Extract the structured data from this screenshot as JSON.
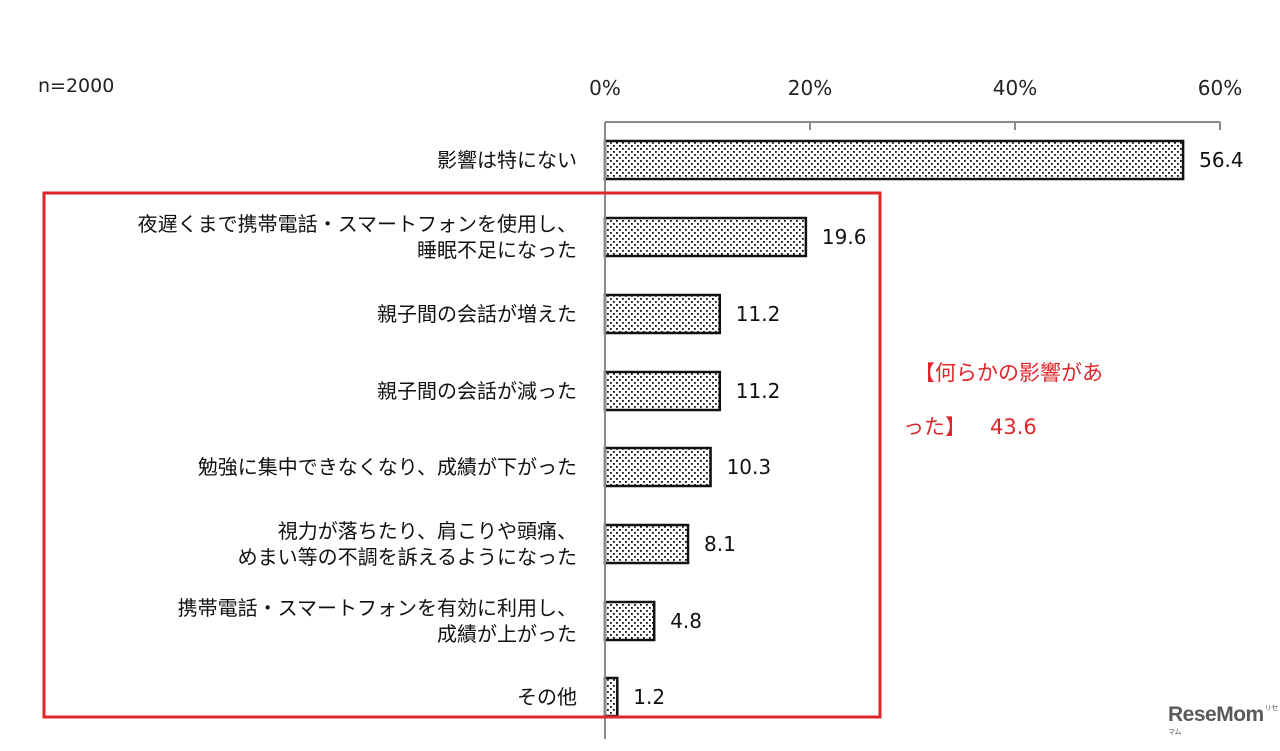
{
  "chart_data": {
    "type": "bar",
    "orientation": "horizontal",
    "sample_note": "n=2000",
    "xlim": [
      0,
      60
    ],
    "xticks": [
      "0%",
      "20%",
      "40%",
      "60%"
    ],
    "categories": [
      [
        "影響は特にない"
      ],
      [
        "夜遅くまで携帯電話・スマートフォンを使用し、",
        "睡眠不足になった"
      ],
      [
        "親子間の会話が増えた"
      ],
      [
        "親子間の会話が減った"
      ],
      [
        "勉強に集中できなくなり、成績が下がった"
      ],
      [
        "視力が落ちたり、肩こりや頭痛、",
        "めまい等の不調を訴えるようになった"
      ],
      [
        "携帯電話・スマートフォンを有効に利用し、",
        "成績が上がった"
      ],
      [
        "その他"
      ]
    ],
    "values": [
      56.4,
      19.6,
      11.2,
      11.2,
      10.3,
      8.1,
      4.8,
      1.2
    ],
    "value_labels": [
      "56.4",
      "19.6",
      "11.2",
      "11.2",
      "10.3",
      "8.1",
      "4.8",
      "1.2"
    ],
    "bar_pattern": "dotted",
    "grid": false
  },
  "annotation": {
    "line1": "【何らかの影響があ",
    "line2": "った】",
    "value": "43.6",
    "color": "#e0262a"
  },
  "watermark": {
    "text": "ReseMom",
    "sup": "リセマム"
  }
}
